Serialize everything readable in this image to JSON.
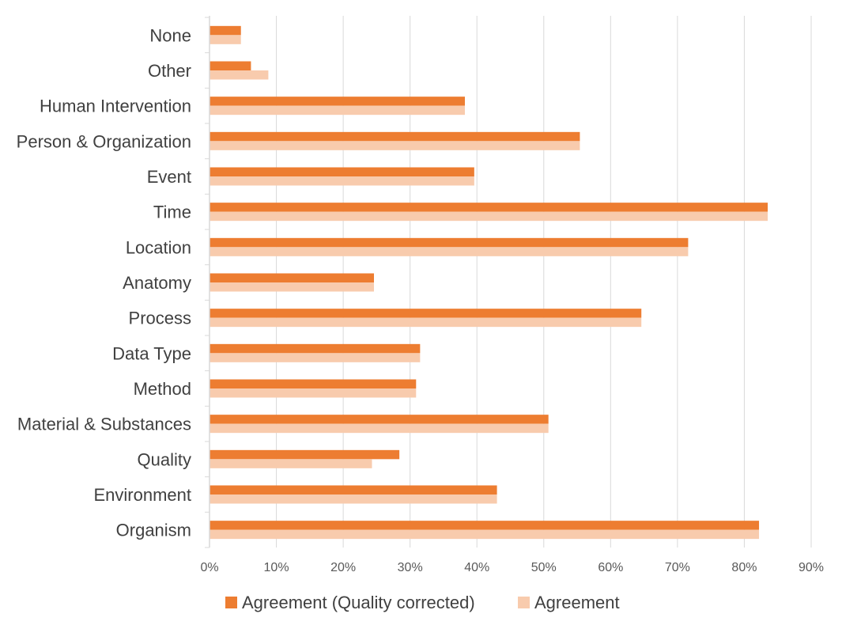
{
  "colors": {
    "series_corrected": "#ED7D31",
    "series_agreement": "#F8CBAD",
    "grid": "#D9D9D9",
    "text": "#404040"
  },
  "chart_data": {
    "type": "bar",
    "orientation": "horizontal",
    "title": "",
    "xlabel": "",
    "ylabel": "",
    "xlim": [
      0,
      0.9
    ],
    "x_ticks": [
      0,
      0.1,
      0.2,
      0.3,
      0.4,
      0.5,
      0.6,
      0.7,
      0.8,
      0.9
    ],
    "x_tick_labels": [
      "0%",
      "10%",
      "20%",
      "30%",
      "40%",
      "50%",
      "60%",
      "70%",
      "80%",
      "90%"
    ],
    "grid": "vertical",
    "legend_position": "bottom",
    "categories": [
      "None",
      "Other",
      "Human Intervention",
      "Person & Organization",
      "Event",
      "Time",
      "Location",
      "Anatomy",
      "Process",
      "Data Type",
      "Method",
      "Material & Substances",
      "Quality",
      "Environment",
      "Organism"
    ],
    "series": [
      {
        "name": "Agreement (Quality corrected)",
        "values": [
          0.047,
          0.062,
          0.382,
          0.554,
          0.396,
          0.835,
          0.716,
          0.246,
          0.646,
          0.315,
          0.309,
          0.507,
          0.284,
          0.43,
          0.822
        ]
      },
      {
        "name": "Agreement",
        "values": [
          0.047,
          0.088,
          0.382,
          0.554,
          0.396,
          0.835,
          0.716,
          0.246,
          0.646,
          0.315,
          0.309,
          0.507,
          0.243,
          0.43,
          0.822
        ]
      }
    ]
  }
}
